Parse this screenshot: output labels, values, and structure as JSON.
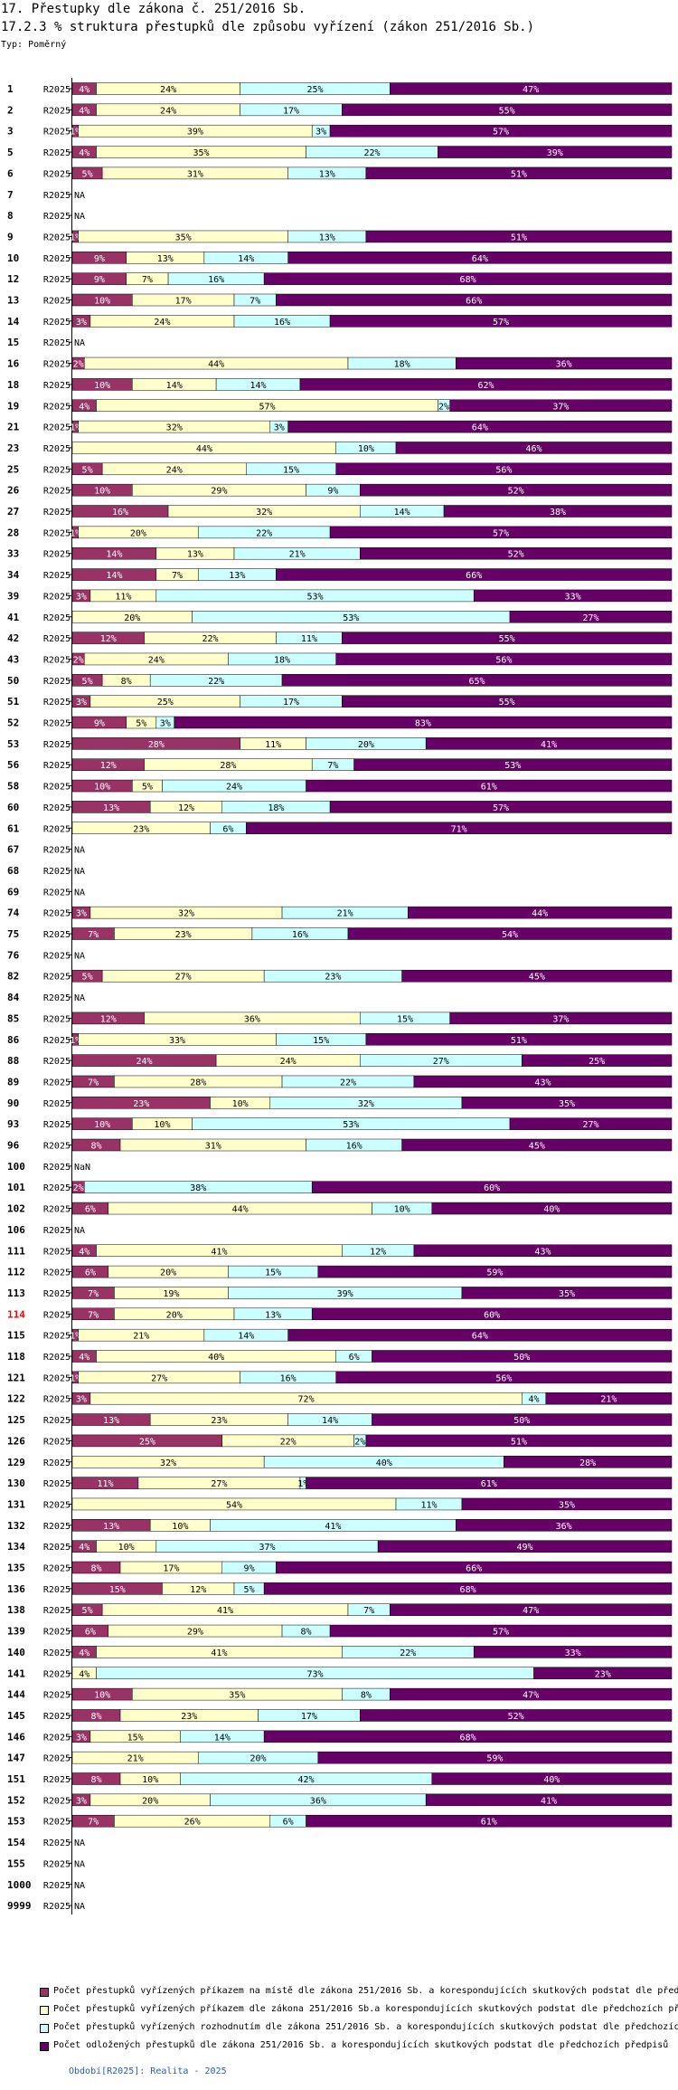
{
  "chart_data": {
    "type": "bar",
    "stacked": true,
    "orientation": "horizontal",
    "normalized_percent": true,
    "title": "17. Přestupky dle zákona č. 251/2016 Sb.",
    "subtitle": "17.2.3 % struktura přestupků dle způsobu vyřízení (zákon 251/2016 Sb.)",
    "type_label": "Typ: Poměrný",
    "period_label": "R2025",
    "highlight_category": "114",
    "colors": {
      "s1": "#993366",
      "s2": "#ffffcc",
      "s3": "#ccffff",
      "s4": "#660066",
      "highlight": "#ff0000",
      "footer": "#2060c0"
    },
    "series": [
      {
        "name": "Počet přestupků vyřízených příkazem na místě dle zákona 251/2016 Sb. a korespondujících skutkových podstat dle před"
      },
      {
        "name": "Počet přestupků vyřízených příkazem dle zákona 251/2016 Sb.a korespondujících skutkových podstat dle předchozích před"
      },
      {
        "name": "Počet přestupků vyřízených rozhodnutím dle zákona 251/2016 Sb. a korespondujících skutkových podstat dle předchozíc"
      },
      {
        "name": "Počet odložených přestupků dle zákona 251/2016 Sb. a korespondujících skutkových podstat dle předchozích předpisů"
      }
    ],
    "rows": [
      {
        "category": "1",
        "values": [
          4,
          24,
          25,
          47
        ]
      },
      {
        "category": "2",
        "values": [
          4,
          24,
          17,
          55
        ]
      },
      {
        "category": "3",
        "values": [
          1,
          39,
          3,
          57
        ]
      },
      {
        "category": "5",
        "values": [
          4,
          35,
          22,
          39
        ]
      },
      {
        "category": "6",
        "values": [
          5,
          31,
          13,
          51
        ]
      },
      {
        "category": "7",
        "values": null,
        "na": "NA"
      },
      {
        "category": "8",
        "values": null,
        "na": "NA"
      },
      {
        "category": "9",
        "values": [
          1,
          35,
          13,
          51
        ]
      },
      {
        "category": "10",
        "values": [
          9,
          13,
          14,
          64
        ]
      },
      {
        "category": "12",
        "values": [
          9,
          7,
          16,
          68
        ]
      },
      {
        "category": "13",
        "values": [
          10,
          17,
          7,
          66
        ]
      },
      {
        "category": "14",
        "values": [
          3,
          24,
          16,
          57
        ]
      },
      {
        "category": "15",
        "values": null,
        "na": "NA"
      },
      {
        "category": "16",
        "values": [
          2,
          44,
          18,
          36
        ]
      },
      {
        "category": "18",
        "values": [
          10,
          14,
          14,
          62
        ]
      },
      {
        "category": "19",
        "values": [
          4,
          57,
          2,
          37
        ]
      },
      {
        "category": "21",
        "values": [
          1,
          32,
          3,
          64
        ]
      },
      {
        "category": "23",
        "values": [
          0,
          44,
          10,
          46
        ]
      },
      {
        "category": "25",
        "values": [
          5,
          24,
          15,
          56
        ]
      },
      {
        "category": "26",
        "values": [
          10,
          29,
          9,
          52
        ]
      },
      {
        "category": "27",
        "values": [
          16,
          32,
          14,
          38
        ]
      },
      {
        "category": "28",
        "values": [
          1,
          20,
          22,
          57
        ]
      },
      {
        "category": "33",
        "values": [
          14,
          13,
          21,
          52
        ]
      },
      {
        "category": "34",
        "values": [
          14,
          7,
          13,
          66
        ]
      },
      {
        "category": "39",
        "values": [
          3,
          11,
          53,
          33
        ]
      },
      {
        "category": "41",
        "values": [
          0,
          20,
          53,
          27
        ]
      },
      {
        "category": "42",
        "values": [
          12,
          22,
          11,
          55
        ]
      },
      {
        "category": "43",
        "values": [
          2,
          24,
          18,
          56
        ]
      },
      {
        "category": "50",
        "values": [
          5,
          8,
          22,
          65
        ]
      },
      {
        "category": "51",
        "values": [
          3,
          25,
          17,
          55
        ]
      },
      {
        "category": "52",
        "values": [
          9,
          5,
          3,
          83
        ]
      },
      {
        "category": "53",
        "values": [
          28,
          11,
          20,
          41
        ]
      },
      {
        "category": "56",
        "values": [
          12,
          28,
          7,
          53
        ]
      },
      {
        "category": "58",
        "values": [
          10,
          5,
          24,
          61
        ]
      },
      {
        "category": "60",
        "values": [
          13,
          12,
          18,
          57
        ]
      },
      {
        "category": "61",
        "values": [
          0,
          23,
          6,
          71
        ]
      },
      {
        "category": "67",
        "values": null,
        "na": "NA"
      },
      {
        "category": "68",
        "values": null,
        "na": "NA"
      },
      {
        "category": "69",
        "values": null,
        "na": "NA"
      },
      {
        "category": "74",
        "values": [
          3,
          32,
          21,
          44
        ]
      },
      {
        "category": "75",
        "values": [
          7,
          23,
          16,
          54
        ]
      },
      {
        "category": "76",
        "values": null,
        "na": "NA"
      },
      {
        "category": "82",
        "values": [
          5,
          27,
          23,
          45
        ]
      },
      {
        "category": "84",
        "values": null,
        "na": "NA"
      },
      {
        "category": "85",
        "values": [
          12,
          36,
          15,
          37
        ]
      },
      {
        "category": "86",
        "values": [
          1,
          33,
          15,
          51
        ]
      },
      {
        "category": "88",
        "values": [
          24,
          24,
          27,
          25
        ]
      },
      {
        "category": "89",
        "values": [
          7,
          28,
          22,
          43
        ]
      },
      {
        "category": "90",
        "values": [
          23,
          10,
          32,
          35
        ]
      },
      {
        "category": "93",
        "values": [
          10,
          10,
          53,
          27
        ]
      },
      {
        "category": "96",
        "values": [
          8,
          31,
          16,
          45
        ]
      },
      {
        "category": "100",
        "values": null,
        "na": "NaN"
      },
      {
        "category": "101",
        "values": [
          2,
          0,
          38,
          60
        ]
      },
      {
        "category": "102",
        "values": [
          6,
          44,
          10,
          40
        ]
      },
      {
        "category": "106",
        "values": null,
        "na": "NA"
      },
      {
        "category": "111",
        "values": [
          4,
          41,
          12,
          43
        ]
      },
      {
        "category": "112",
        "values": [
          6,
          20,
          15,
          59
        ]
      },
      {
        "category": "113",
        "values": [
          7,
          19,
          39,
          35
        ]
      },
      {
        "category": "114",
        "values": [
          7,
          20,
          13,
          60
        ]
      },
      {
        "category": "115",
        "values": [
          1,
          21,
          14,
          64
        ]
      },
      {
        "category": "118",
        "values": [
          4,
          40,
          6,
          50
        ]
      },
      {
        "category": "121",
        "values": [
          1,
          27,
          16,
          56
        ]
      },
      {
        "category": "122",
        "values": [
          3,
          72,
          4,
          21
        ]
      },
      {
        "category": "125",
        "values": [
          13,
          23,
          14,
          50
        ]
      },
      {
        "category": "126",
        "values": [
          25,
          22,
          2,
          51
        ]
      },
      {
        "category": "129",
        "values": [
          0,
          32,
          40,
          28
        ]
      },
      {
        "category": "130",
        "values": [
          11,
          27,
          1,
          61
        ]
      },
      {
        "category": "131",
        "values": [
          0,
          54,
          11,
          35
        ]
      },
      {
        "category": "132",
        "values": [
          13,
          10,
          41,
          36
        ]
      },
      {
        "category": "134",
        "values": [
          4,
          10,
          37,
          49
        ]
      },
      {
        "category": "135",
        "values": [
          8,
          17,
          9,
          66
        ]
      },
      {
        "category": "136",
        "values": [
          15,
          12,
          5,
          68
        ]
      },
      {
        "category": "138",
        "values": [
          5,
          41,
          7,
          47
        ]
      },
      {
        "category": "139",
        "values": [
          6,
          29,
          8,
          57
        ]
      },
      {
        "category": "140",
        "values": [
          4,
          41,
          22,
          33
        ]
      },
      {
        "category": "141",
        "values": [
          0,
          4,
          73,
          23
        ]
      },
      {
        "category": "144",
        "values": [
          10,
          35,
          8,
          47
        ]
      },
      {
        "category": "145",
        "values": [
          8,
          23,
          17,
          52
        ]
      },
      {
        "category": "146",
        "values": [
          3,
          15,
          14,
          68
        ]
      },
      {
        "category": "147",
        "values": [
          0,
          21,
          20,
          59
        ]
      },
      {
        "category": "151",
        "values": [
          8,
          10,
          42,
          40
        ]
      },
      {
        "category": "152",
        "values": [
          3,
          20,
          36,
          41
        ]
      },
      {
        "category": "153",
        "values": [
          7,
          26,
          6,
          61
        ]
      },
      {
        "category": "154",
        "values": null,
        "na": "NA"
      },
      {
        "category": "155",
        "values": null,
        "na": "NA"
      },
      {
        "category": "1000",
        "values": null,
        "na": "NA"
      },
      {
        "category": "9999",
        "values": null,
        "na": "NA"
      }
    ]
  },
  "footer": "Období[R2025]: Realita - 2025"
}
